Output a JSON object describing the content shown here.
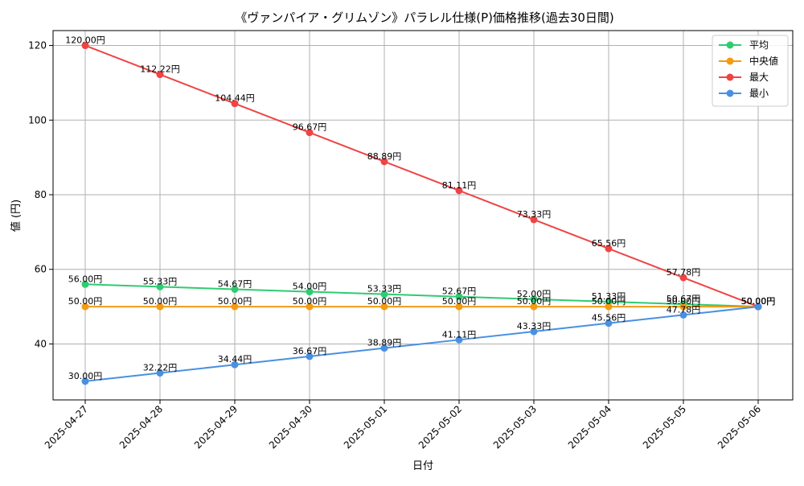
{
  "chart_data": {
    "type": "line",
    "title": "《ヴァンパイア・グリムゾン》パラレル仕様(P)価格推移(過去30日間)",
    "xlabel": "日付",
    "ylabel": "値 (円)",
    "categories": [
      "2025-04-27",
      "2025-04-28",
      "2025-04-29",
      "2025-04-30",
      "2025-05-01",
      "2025-05-02",
      "2025-05-03",
      "2025-05-04",
      "2025-05-05",
      "2025-05-06"
    ],
    "ylim": [
      25,
      124
    ],
    "yticks": [
      40,
      60,
      80,
      100,
      120
    ],
    "grid": true,
    "legend_position": "top-right",
    "value_suffix": "円",
    "series": [
      {
        "name": "平均",
        "color": "#2ecc71",
        "values": [
          56.0,
          55.33,
          54.67,
          54.0,
          53.33,
          52.67,
          52.0,
          51.33,
          50.67,
          50.0
        ]
      },
      {
        "name": "中央値",
        "color": "#f39c12",
        "values": [
          50.0,
          50.0,
          50.0,
          50.0,
          50.0,
          50.0,
          50.0,
          50.0,
          50.0,
          50.0
        ]
      },
      {
        "name": "最大",
        "color": "#ef4444",
        "values": [
          120.0,
          112.22,
          104.44,
          96.67,
          88.89,
          81.11,
          73.33,
          65.56,
          57.78,
          50.0
        ]
      },
      {
        "name": "最小",
        "color": "#4a90e2",
        "values": [
          30.0,
          32.22,
          34.44,
          36.67,
          38.89,
          41.11,
          43.33,
          45.56,
          47.78,
          50.0
        ]
      }
    ]
  }
}
